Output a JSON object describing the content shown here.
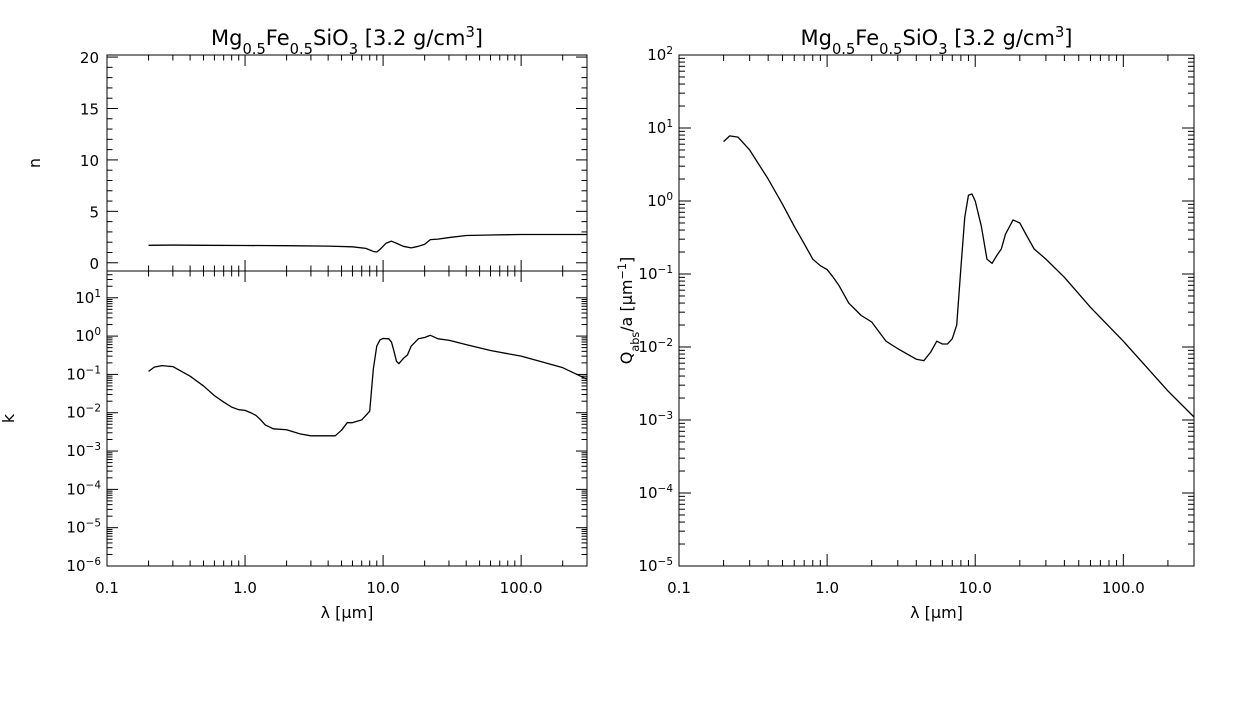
{
  "chart_data": [
    {
      "type": "line",
      "panel": "n",
      "title_parts": [
        {
          "t": "Mg"
        },
        {
          "t": "0.5",
          "sub": true
        },
        {
          "t": "Fe"
        },
        {
          "t": "0.5",
          "sub": true
        },
        {
          "t": "SiO"
        },
        {
          "t": "3",
          "sub": true
        },
        {
          "t": " [3.2 g/cm"
        },
        {
          "t": "3",
          "sup": true
        },
        {
          "t": "]"
        }
      ],
      "ylabel": "n",
      "xscale": "log",
      "yscale": "linear",
      "xlim": [
        0.1,
        300
      ],
      "ylim": [
        -0.8,
        20.2
      ],
      "yticks": [
        0,
        5,
        10,
        15,
        20
      ],
      "ytick_labels": [
        "0",
        "5",
        "10",
        "15",
        "20"
      ],
      "series": [
        {
          "x": [
            0.2,
            0.3,
            0.5,
            1.0,
            2.0,
            4.0,
            6.0,
            7.5,
            8.5,
            9.0,
            9.5,
            10.5,
            11.5,
            12.5,
            14.0,
            16.0,
            18.0,
            20.0,
            22.0,
            25.0,
            30.0,
            40.0,
            60.0,
            100.0,
            300.0
          ],
          "y": [
            1.7,
            1.72,
            1.7,
            1.68,
            1.66,
            1.62,
            1.55,
            1.4,
            1.1,
            1.05,
            1.3,
            1.9,
            2.1,
            1.9,
            1.6,
            1.45,
            1.6,
            1.8,
            2.25,
            2.3,
            2.45,
            2.65,
            2.7,
            2.75,
            2.75
          ]
        }
      ]
    },
    {
      "type": "line",
      "panel": "k",
      "ylabel": "k",
      "xlabel_parts": [
        {
          "t": "λ [μm]"
        }
      ],
      "xscale": "log",
      "yscale": "log",
      "xlim": [
        0.1,
        300
      ],
      "ylim": [
        1e-06,
        50
      ],
      "xticks": [
        0.1,
        1.0,
        10.0,
        100.0
      ],
      "xtick_labels": [
        "0.1",
        "1.0",
        "10.0",
        "100.0"
      ],
      "yticks": [
        1e-06,
        1e-05,
        0.0001,
        0.001,
        0.01,
        0.1,
        1,
        10
      ],
      "ytick_bases": [
        "10",
        "10",
        "10",
        "10",
        "10",
        "10",
        "10",
        "10"
      ],
      "ytick_exps": [
        "−6",
        "−5",
        "−4",
        "−3",
        "−2",
        "−1",
        "0",
        "1"
      ],
      "series": [
        {
          "x": [
            0.2,
            0.22,
            0.25,
            0.3,
            0.4,
            0.5,
            0.6,
            0.7,
            0.8,
            0.9,
            1.0,
            1.1,
            1.2,
            1.3,
            1.4,
            1.6,
            2.0,
            2.5,
            3.0,
            3.5,
            4.0,
            4.5,
            5.0,
            5.5,
            6.0,
            7.0,
            7.5,
            8.0,
            8.5,
            9.0,
            9.5,
            10.0,
            11.0,
            11.5,
            12.0,
            12.5,
            13.0,
            14.0,
            15.0,
            16.0,
            18.0,
            20.0,
            22.0,
            25.0,
            30.0,
            40.0,
            60.0,
            100.0,
            200.0,
            300.0
          ],
          "y": [
            0.12,
            0.155,
            0.17,
            0.16,
            0.09,
            0.05,
            0.028,
            0.019,
            0.014,
            0.012,
            0.0115,
            0.01,
            0.0085,
            0.0065,
            0.0048,
            0.0038,
            0.0036,
            0.0028,
            0.0025,
            0.0025,
            0.0025,
            0.0025,
            0.0035,
            0.0055,
            0.0055,
            0.0065,
            0.0085,
            0.011,
            0.14,
            0.55,
            0.8,
            0.87,
            0.85,
            0.7,
            0.4,
            0.22,
            0.19,
            0.26,
            0.32,
            0.55,
            0.85,
            0.92,
            1.05,
            0.85,
            0.78,
            0.6,
            0.42,
            0.3,
            0.15,
            0.075
          ]
        }
      ]
    },
    {
      "type": "line",
      "panel": "qabs",
      "title_parts": [
        {
          "t": "Mg"
        },
        {
          "t": "0.5",
          "sub": true
        },
        {
          "t": "Fe"
        },
        {
          "t": "0.5",
          "sub": true
        },
        {
          "t": "SiO"
        },
        {
          "t": "3",
          "sub": true
        },
        {
          "t": " [3.2 g/cm"
        },
        {
          "t": "3",
          "sup": true
        },
        {
          "t": "]"
        }
      ],
      "ylabel_parts": [
        {
          "t": "Q"
        },
        {
          "t": "abs",
          "sub": true
        },
        {
          "t": "/a [μm"
        },
        {
          "t": "−1",
          "sup": true
        },
        {
          "t": "]"
        }
      ],
      "xlabel_parts": [
        {
          "t": "λ [μm]"
        }
      ],
      "xscale": "log",
      "yscale": "log",
      "xlim": [
        0.1,
        300
      ],
      "ylim": [
        1e-05,
        100
      ],
      "xticks": [
        0.1,
        1.0,
        10.0,
        100.0
      ],
      "xtick_labels": [
        "0.1",
        "1.0",
        "10.0",
        "100.0"
      ],
      "yticks": [
        1e-05,
        0.0001,
        0.001,
        0.01,
        0.1,
        1,
        10,
        100
      ],
      "ytick_bases": [
        "10",
        "10",
        "10",
        "10",
        "10",
        "10",
        "10",
        "10"
      ],
      "ytick_exps": [
        "−5",
        "−4",
        "−3",
        "−2",
        "−1",
        "0",
        "1",
        "2"
      ],
      "series": [
        {
          "x": [
            0.2,
            0.22,
            0.25,
            0.3,
            0.4,
            0.5,
            0.6,
            0.7,
            0.8,
            0.9,
            1.0,
            1.1,
            1.2,
            1.4,
            1.7,
            2.0,
            2.5,
            3.0,
            4.0,
            4.5,
            5.0,
            5.5,
            6.0,
            6.5,
            7.0,
            7.5,
            8.0,
            8.5,
            9.0,
            9.5,
            10.0,
            11.0,
            12.0,
            13.0,
            14.0,
            15.0,
            16.0,
            18.0,
            20.0,
            22.0,
            25.0,
            30.0,
            40.0,
            60.0,
            100.0,
            200.0,
            300.0
          ],
          "y": [
            6.5,
            7.8,
            7.5,
            5.0,
            2.0,
            0.9,
            0.45,
            0.26,
            0.16,
            0.13,
            0.115,
            0.09,
            0.07,
            0.04,
            0.027,
            0.022,
            0.012,
            0.0095,
            0.0068,
            0.0065,
            0.0085,
            0.012,
            0.011,
            0.011,
            0.013,
            0.02,
            0.12,
            0.6,
            1.2,
            1.25,
            1.0,
            0.45,
            0.16,
            0.14,
            0.18,
            0.22,
            0.35,
            0.55,
            0.5,
            0.35,
            0.22,
            0.16,
            0.09,
            0.035,
            0.012,
            0.0025,
            0.0011
          ]
        }
      ]
    }
  ]
}
